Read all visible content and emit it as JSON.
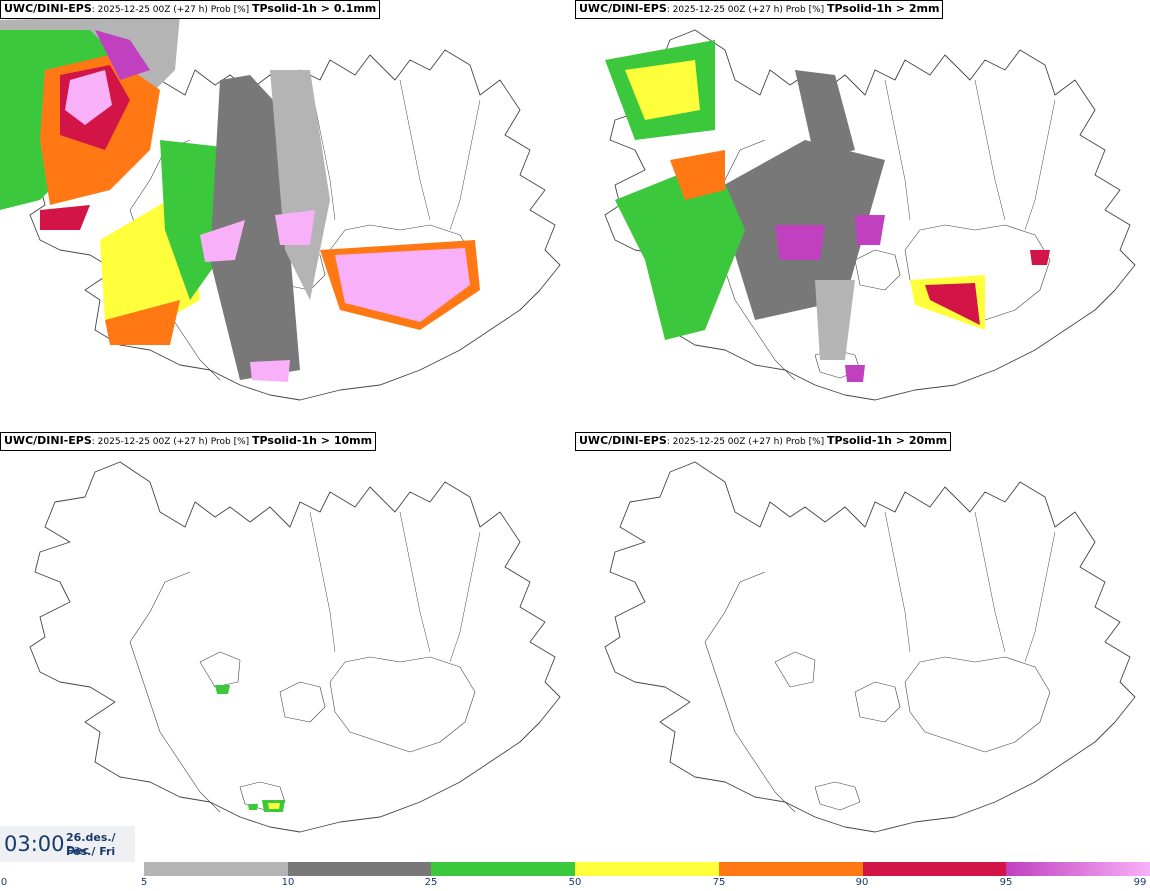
{
  "panels": [
    {
      "model": "UWC/DINI-EPS",
      "run": ": 2025-12-25 00Z (+27 h) Prob [%]",
      "field": "TPsolid-1h > 0.1mm"
    },
    {
      "model": "UWC/DINI-EPS",
      "run": ": 2025-12-25 00Z (+27 h) Prob [%]",
      "field": "TPsolid-1h > 2mm"
    },
    {
      "model": "UWC/DINI-EPS",
      "run": ": 2025-12-25 00Z (+27 h) Prob [%]",
      "field": "TPsolid-1h > 10mm"
    },
    {
      "model": "UWC/DINI-EPS",
      "run": ": 2025-12-25 00Z (+27 h) Prob [%]",
      "field": "TPsolid-1h > 20mm"
    }
  ],
  "valid_time": {
    "time": "03:00",
    "date_line1": "26.des./ Dec",
    "date_line2": "Fös./ Fri"
  },
  "colorbar": {
    "ticks": [
      "0",
      "5",
      "10",
      "25",
      "50",
      "75",
      "90",
      "95",
      "99"
    ],
    "colors": [
      "#b4b4b4",
      "#787878",
      "#3cc83c",
      "#ffff3c",
      "#ff7814",
      "#d21446",
      "#c040c0"
    ]
  }
}
